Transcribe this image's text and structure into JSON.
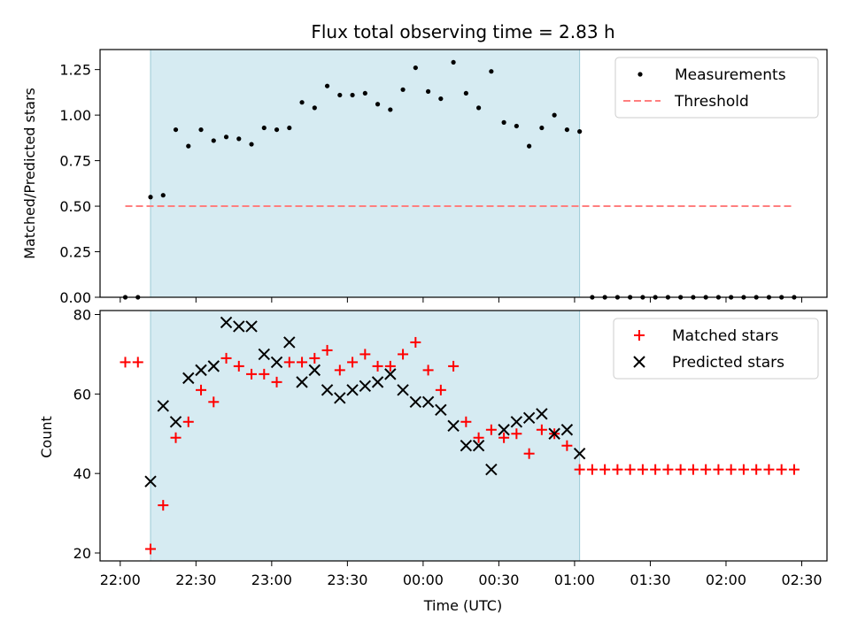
{
  "chart_data": [
    {
      "type": "scatter",
      "title": "Flux total observing time = 2.83 h",
      "xlabel": "",
      "ylabel": "Matched/Predicted stars",
      "ylim": [
        0,
        1.36
      ],
      "xlim": [
        "21:52",
        "02:40"
      ],
      "y_ticks": [
        "0.00",
        "0.25",
        "0.50",
        "0.75",
        "1.00",
        "1.25"
      ],
      "y_tick_values": [
        0,
        0.25,
        0.5,
        0.75,
        1.0,
        1.25
      ],
      "shaded_span": [
        "22:12",
        "01:02"
      ],
      "legend": "top-right",
      "legend_labels": {
        "measurements": "Measurements",
        "threshold": "Threshold"
      },
      "series": [
        {
          "name": "Measurements",
          "kind": "points",
          "color": "#000000",
          "x": [
            "22:02",
            "22:07",
            "22:12",
            "22:17",
            "22:22",
            "22:27",
            "22:32",
            "22:37",
            "22:42",
            "22:47",
            "22:52",
            "22:57",
            "23:02",
            "23:07",
            "23:12",
            "23:17",
            "23:22",
            "23:27",
            "23:32",
            "23:37",
            "23:42",
            "23:47",
            "23:52",
            "23:57",
            "00:02",
            "00:07",
            "00:12",
            "00:17",
            "00:22",
            "00:27",
            "00:32",
            "00:37",
            "00:42",
            "00:47",
            "00:52",
            "00:57",
            "01:02",
            "01:07",
            "01:12",
            "01:17",
            "01:22",
            "01:27",
            "01:32",
            "01:37",
            "01:42",
            "01:47",
            "01:52",
            "01:57",
            "02:02",
            "02:07",
            "02:12",
            "02:17",
            "02:22",
            "02:27"
          ],
          "y": [
            0.0,
            0.0,
            0.55,
            0.56,
            0.92,
            0.83,
            0.92,
            0.86,
            0.88,
            0.87,
            0.84,
            0.93,
            0.92,
            0.93,
            1.07,
            1.04,
            1.16,
            1.11,
            1.11,
            1.12,
            1.06,
            1.03,
            1.14,
            1.26,
            1.13,
            1.09,
            1.29,
            1.12,
            1.04,
            1.24,
            0.96,
            0.94,
            0.83,
            0.93,
            1.0,
            0.92,
            0.91,
            0.0,
            0.0,
            0.0,
            0.0,
            0.0,
            0.0,
            0.0,
            0.0,
            0.0,
            0.0,
            0.0,
            0.0,
            0.0,
            0.0,
            0.0,
            0.0,
            0.0
          ]
        },
        {
          "name": "Threshold",
          "kind": "dashed-line",
          "color": "#ff7f7f",
          "x": [
            "22:02",
            "02:27"
          ],
          "y": [
            0.5,
            0.5
          ]
        }
      ]
    },
    {
      "type": "scatter",
      "title": "",
      "xlabel": "Time (UTC)",
      "ylabel": "Count",
      "ylim": [
        18,
        81
      ],
      "xlim": [
        "21:52",
        "02:40"
      ],
      "x_ticks": [
        "22:00",
        "22:30",
        "23:00",
        "23:30",
        "00:00",
        "00:30",
        "01:00",
        "01:30",
        "02:00",
        "02:30"
      ],
      "y_ticks": [
        "20",
        "40",
        "60",
        "80"
      ],
      "y_tick_values": [
        20,
        40,
        60,
        80
      ],
      "shaded_span": [
        "22:12",
        "01:02"
      ],
      "legend": "top-right",
      "legend_labels": {
        "matched": "Matched stars",
        "predicted": "Predicted stars"
      },
      "series": [
        {
          "name": "Matched stars",
          "kind": "plus",
          "color": "#ff0000",
          "x": [
            "22:02",
            "22:07",
            "22:12",
            "22:17",
            "22:22",
            "22:27",
            "22:32",
            "22:37",
            "22:42",
            "22:47",
            "22:52",
            "22:57",
            "23:02",
            "23:07",
            "23:12",
            "23:17",
            "23:22",
            "23:27",
            "23:32",
            "23:37",
            "23:42",
            "23:47",
            "23:52",
            "23:57",
            "00:02",
            "00:07",
            "00:12",
            "00:17",
            "00:22",
            "00:27",
            "00:32",
            "00:37",
            "00:42",
            "00:47",
            "00:52",
            "00:57",
            "01:02",
            "01:07",
            "01:12",
            "01:17",
            "01:22",
            "01:27",
            "01:32",
            "01:37",
            "01:42",
            "01:47",
            "01:52",
            "01:57",
            "02:02",
            "02:07",
            "02:12",
            "02:17",
            "02:22",
            "02:27"
          ],
          "y": [
            68,
            68,
            21,
            32,
            49,
            53,
            61,
            58,
            69,
            67,
            65,
            65,
            63,
            68,
            68,
            69,
            71,
            66,
            68,
            70,
            67,
            67,
            70,
            73,
            66,
            61,
            67,
            53,
            49,
            51,
            49,
            50,
            45,
            51,
            50,
            47,
            41,
            41,
            41,
            41,
            41,
            41,
            41,
            41,
            41,
            41,
            41,
            41,
            41,
            41,
            41,
            41,
            41,
            41
          ]
        },
        {
          "name": "Predicted stars",
          "kind": "x",
          "color": "#000000",
          "x": [
            "22:12",
            "22:17",
            "22:22",
            "22:27",
            "22:32",
            "22:37",
            "22:42",
            "22:47",
            "22:52",
            "22:57",
            "23:02",
            "23:07",
            "23:12",
            "23:17",
            "23:22",
            "23:27",
            "23:32",
            "23:37",
            "23:42",
            "23:47",
            "23:52",
            "23:57",
            "00:02",
            "00:07",
            "00:12",
            "00:17",
            "00:22",
            "00:27",
            "00:32",
            "00:37",
            "00:42",
            "00:47",
            "00:52",
            "00:57",
            "01:02"
          ],
          "y": [
            38,
            57,
            53,
            64,
            66,
            67,
            78,
            77,
            77,
            70,
            68,
            73,
            63,
            66,
            61,
            59,
            61,
            62,
            63,
            65,
            61,
            58,
            58,
            56,
            52,
            47,
            47,
            41,
            51,
            53,
            54,
            55,
            50,
            51,
            45
          ]
        }
      ]
    }
  ]
}
